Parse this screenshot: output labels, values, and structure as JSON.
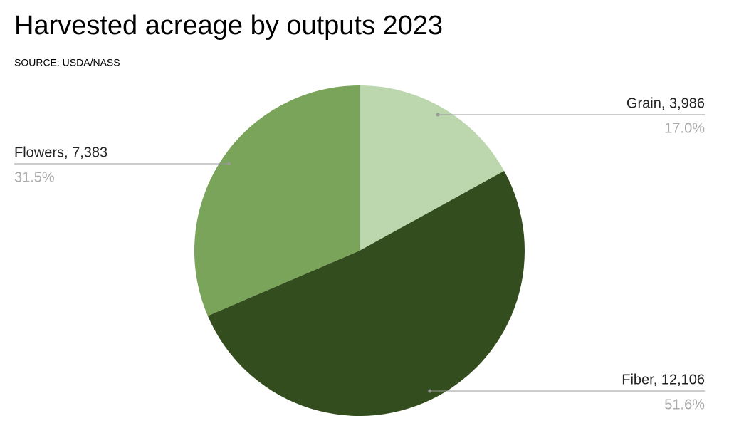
{
  "chart_data": {
    "type": "pie",
    "title": "Harvested acreage by outputs 2023",
    "subtitle": "SOURCE: USDA/NASS",
    "categories": [
      "Grain",
      "Fiber",
      "Flowers"
    ],
    "values": [
      3986,
      12106,
      7383
    ],
    "value_labels": [
      "Grain, 3,986",
      "Fiber, 12,106",
      "Flowers, 7,383"
    ],
    "percents": [
      17.0,
      51.6,
      31.5
    ],
    "percent_labels": [
      "17.0%",
      "51.6%",
      "31.5%"
    ],
    "colors": [
      "#bcd6ad",
      "#344d1e",
      "#7aa45a"
    ]
  }
}
